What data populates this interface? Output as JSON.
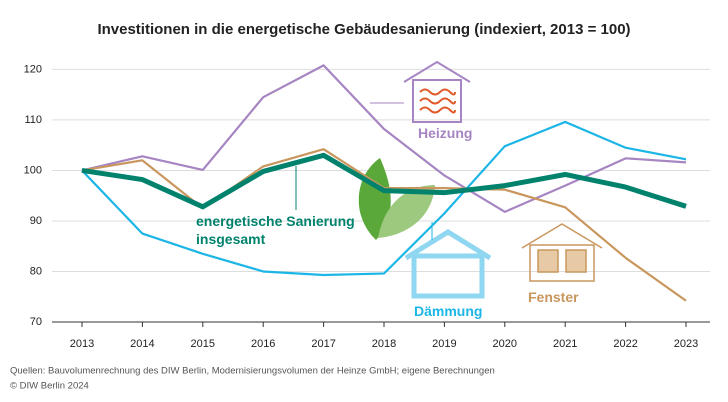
{
  "chart_data": {
    "type": "line",
    "title": "Investitionen in die energetische Gebäudesanierung (indexiert, 2013 = 100)",
    "categories": [
      "2013",
      "2014",
      "2015",
      "2016",
      "2017",
      "2018",
      "2019",
      "2020",
      "2021",
      "2022",
      "2023"
    ],
    "series": [
      {
        "name": "Heizung",
        "color": "#a685c2",
        "values": [
          100,
          102.8,
          100.1,
          114.5,
          120.8,
          108.2,
          99,
          91.8,
          97,
          102.4,
          101.6
        ]
      },
      {
        "name": "Dämmung",
        "color": "#1cb6e6",
        "values": [
          100,
          87.5,
          83.5,
          80,
          79.3,
          79.6,
          91.5,
          104.8,
          109.6,
          104.5,
          102.2
        ]
      },
      {
        "name": "Fenster",
        "color": "#c9975e",
        "values": [
          100,
          102,
          92.5,
          100.8,
          104.2,
          96.5,
          96.5,
          96.2,
          92.7,
          82.7,
          74.2
        ]
      },
      {
        "name": "energetische Sanierung insgesamt",
        "color": "#00826d",
        "values": [
          100,
          98.2,
          92.8,
          99.8,
          103,
          96,
          95.6,
          97,
          99.2,
          96.7,
          92.9
        ]
      }
    ],
    "ylim": [
      70,
      122
    ],
    "yticks": [
      70,
      80,
      90,
      100,
      110,
      120
    ],
    "grid": true,
    "source": "Quellen: Bauvolumenrechnung des DIW Berlin, Modernisierungsvolumen der Heinze GmbH; eigene Berechnungen",
    "copyright": "© DIW Berlin 2024"
  }
}
